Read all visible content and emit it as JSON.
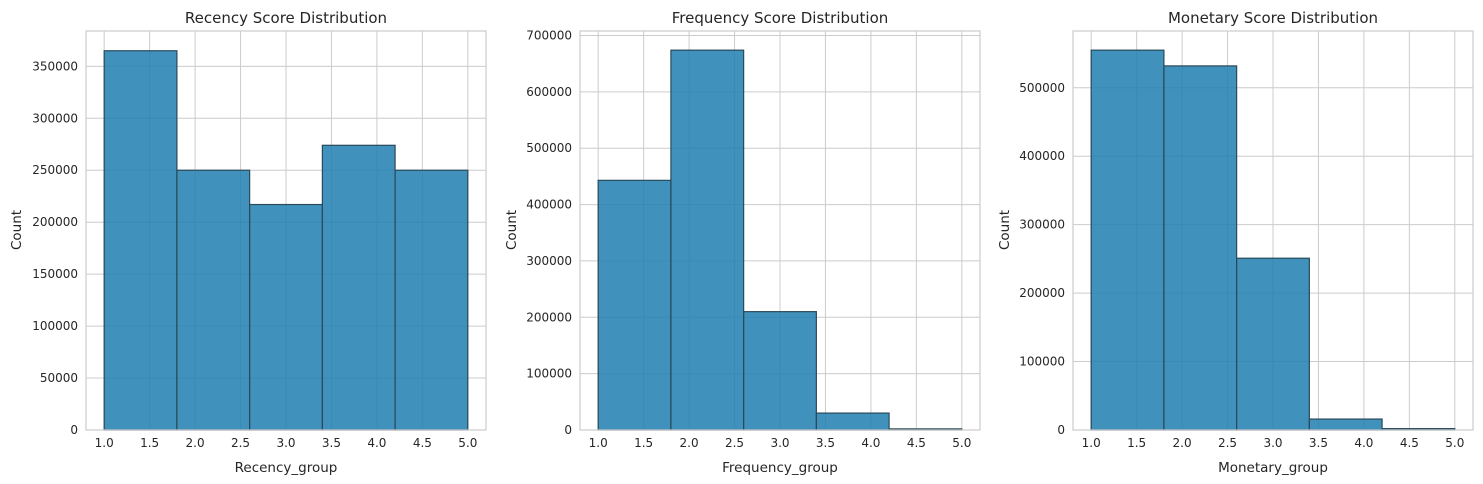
{
  "chart_data": [
    {
      "type": "bar",
      "title": "Recency Score Distribution",
      "xlabel": "Recency_group",
      "ylabel": "Count",
      "bin_edges": [
        1.0,
        1.8,
        2.6,
        3.4,
        4.2,
        5.0
      ],
      "values": [
        365000,
        250000,
        217000,
        274000,
        250000
      ],
      "xlim": [
        0.8,
        5.2
      ],
      "ylim": [
        0,
        384000
      ],
      "xticks": [
        1.0,
        1.5,
        2.0,
        2.5,
        3.0,
        3.5,
        4.0,
        4.5,
        5.0
      ],
      "xtick_labels": [
        "1.0",
        "1.5",
        "2.0",
        "2.5",
        "3.0",
        "3.5",
        "4.0",
        "4.5",
        "5.0"
      ],
      "yticks": [
        0,
        50000,
        100000,
        150000,
        200000,
        250000,
        300000,
        350000
      ],
      "ytick_labels": [
        "0",
        "50000",
        "100000",
        "150000",
        "200000",
        "250000",
        "300000",
        "350000"
      ],
      "grid": true,
      "bar_color": "#1f7fb0"
    },
    {
      "type": "bar",
      "title": "Frequency Score Distribution",
      "xlabel": "Frequency_group",
      "ylabel": "Count",
      "bin_edges": [
        1.0,
        1.8,
        2.6,
        3.4,
        4.2,
        5.0
      ],
      "values": [
        443000,
        674000,
        210000,
        30000,
        2000
      ],
      "xlim": [
        0.8,
        5.2
      ],
      "ylim": [
        0,
        708000
      ],
      "xticks": [
        1.0,
        1.5,
        2.0,
        2.5,
        3.0,
        3.5,
        4.0,
        4.5,
        5.0
      ],
      "xtick_labels": [
        "1.0",
        "1.5",
        "2.0",
        "2.5",
        "3.0",
        "3.5",
        "4.0",
        "4.5",
        "5.0"
      ],
      "yticks": [
        0,
        100000,
        200000,
        300000,
        400000,
        500000,
        600000,
        700000
      ],
      "ytick_labels": [
        "0",
        "100000",
        "200000",
        "300000",
        "400000",
        "500000",
        "600000",
        "700000"
      ],
      "grid": true,
      "bar_color": "#1f7fb0"
    },
    {
      "type": "bar",
      "title": "Monetary Score Distribution",
      "xlabel": "Monetary_group",
      "ylabel": "Count",
      "bin_edges": [
        1.0,
        1.8,
        2.6,
        3.4,
        4.2,
        5.0
      ],
      "values": [
        555000,
        532000,
        251000,
        16000,
        2000
      ],
      "xlim": [
        0.8,
        5.2
      ],
      "ylim": [
        0,
        583000
      ],
      "xticks": [
        1.0,
        1.5,
        2.0,
        2.5,
        3.0,
        3.5,
        4.0,
        4.5,
        5.0
      ],
      "xtick_labels": [
        "1.0",
        "1.5",
        "2.0",
        "2.5",
        "3.0",
        "3.5",
        "4.0",
        "4.5",
        "5.0"
      ],
      "yticks": [
        0,
        100000,
        200000,
        300000,
        400000,
        500000
      ],
      "ytick_labels": [
        "0",
        "100000",
        "200000",
        "300000",
        "400000",
        "500000"
      ],
      "grid": true,
      "bar_color": "#1f7fb0"
    }
  ]
}
